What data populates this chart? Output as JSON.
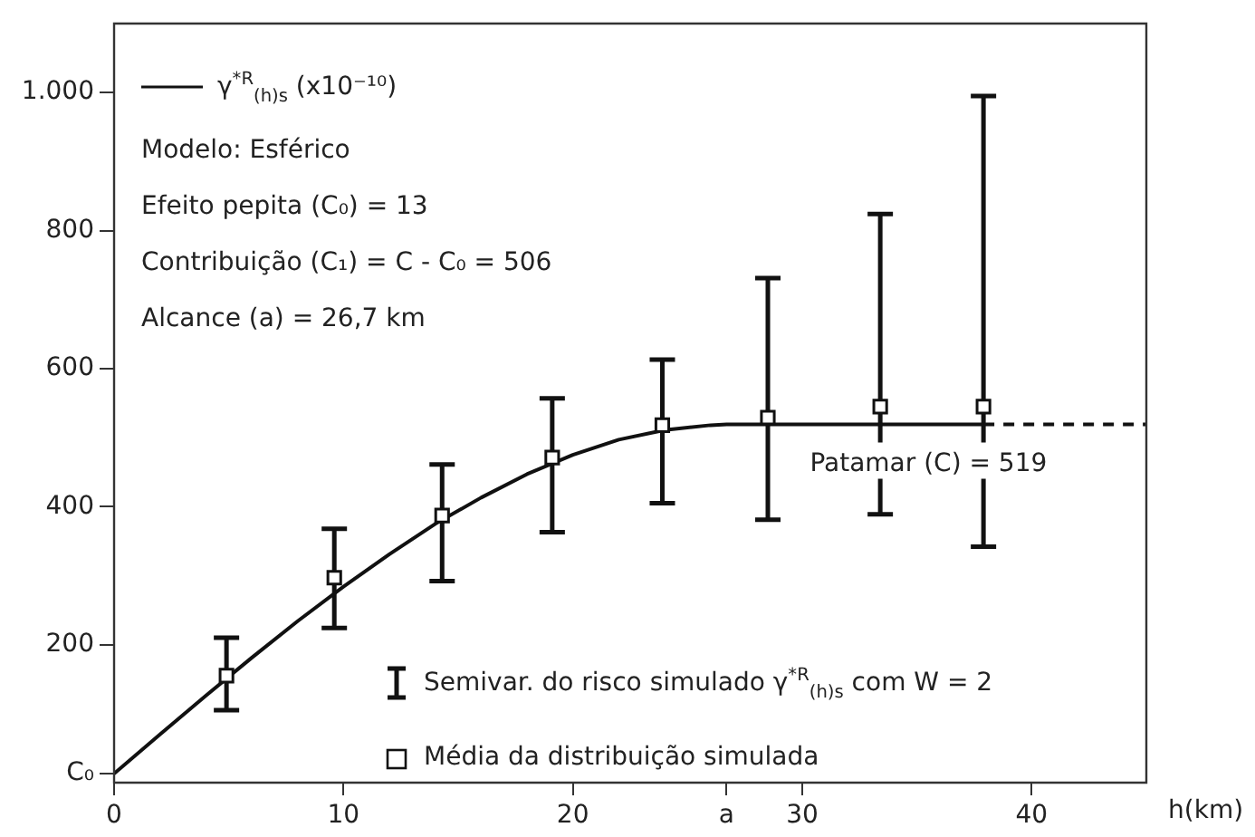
{
  "chart_data": {
    "type": "scatter",
    "xlabel": "h(km)",
    "xlim": [
      0,
      45
    ],
    "ylim": [
      0,
      1100
    ],
    "xticks": [
      0,
      10,
      20,
      {
        "value": 26.7,
        "label": "a"
      },
      30,
      40
    ],
    "yticks": [
      {
        "value": 13,
        "label": "C₀"
      },
      200,
      400,
      600,
      800,
      {
        "value": 1000,
        "label": "1.000"
      }
    ],
    "grid": false,
    "legend": "left",
    "series": [
      {
        "type": "line",
        "name": "γ$^{*R}$$_{(h)s}$ (x10⁻¹⁰)",
        "color": "#111111",
        "marker": "none",
        "line_style": "solid",
        "x": [
          0,
          2,
          4,
          6,
          8,
          10,
          12,
          14,
          16,
          18,
          20,
          22,
          24,
          26,
          26.7,
          37.9
        ],
        "values": [
          13,
          70,
          126,
          181,
          234,
          284,
          331,
          375,
          413,
          447,
          475,
          497,
          511,
          518,
          519,
          519
        ]
      },
      {
        "type": "line",
        "color": "#111111",
        "marker": "none",
        "line_style": "dashed",
        "x": [
          37.9,
          45
        ],
        "values": [
          519,
          519
        ]
      },
      {
        "type": "scatter",
        "name": "Média da distribuição simulada",
        "color": "#111111",
        "marker": "square",
        "x": [
          4.9,
          9.6,
          14.3,
          19.1,
          23.9,
          28.5,
          33.4,
          37.9
        ],
        "values": [
          155,
          297,
          387,
          471,
          518,
          529,
          545,
          545
        ],
        "errors": [
          [
            105,
            210
          ],
          [
            224,
            368
          ],
          [
            292,
            461
          ],
          [
            363,
            557
          ],
          [
            405,
            613
          ],
          [
            381,
            731
          ],
          [
            389,
            824
          ],
          [
            342,
            995
          ]
        ]
      }
    ],
    "annotations": [
      "Modelo: Esférico",
      "Efeito pepita (C₀) = 13",
      "Contribuição (C₁) = C - C₀ = 506",
      "Alcance (a) = 26,7 km",
      {
        "text": "Patamar (C) = 519",
        "x": 35.5,
        "y": 519
      },
      "Semivar. do risco simulado γ$^{*R}$$_{(h)s}$ com W = 2"
    ]
  }
}
